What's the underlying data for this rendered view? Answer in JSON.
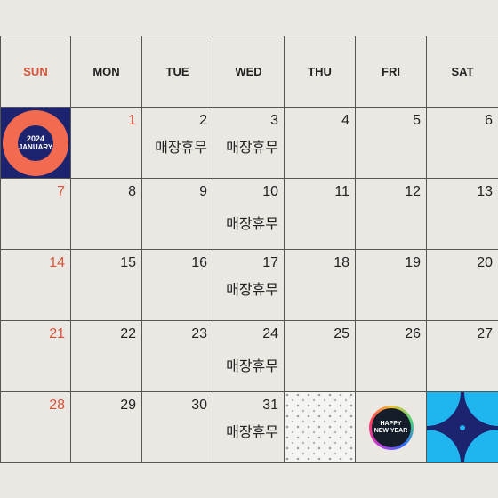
{
  "weekdays": [
    "SUN",
    "MON",
    "TUE",
    "WED",
    "THU",
    "FRI",
    "SAT"
  ],
  "days": {
    "d1": "1",
    "d2": "2",
    "d3": "3",
    "d4": "4",
    "d5": "5",
    "d6": "6",
    "d7": "7",
    "d8": "8",
    "d9": "9",
    "d10": "10",
    "d11": "11",
    "d12": "12",
    "d13": "13",
    "d14": "14",
    "d15": "15",
    "d16": "16",
    "d17": "17",
    "d18": "18",
    "d19": "19",
    "d20": "20",
    "d21": "21",
    "d22": "22",
    "d23": "23",
    "d24": "24",
    "d25": "25",
    "d26": "26",
    "d27": "27",
    "d28": "28",
    "d29": "29",
    "d30": "30",
    "d31": "31"
  },
  "store_closed_label": "매장휴무",
  "decor": {
    "january_badge": {
      "year": "2024",
      "month": "JANUARY"
    },
    "happy_new_year_badge": {
      "line1": "HAPPY",
      "line2": "NEW YEAR"
    }
  },
  "colors": {
    "sunday": "#d9533a",
    "background": "#ebe8e3",
    "navy": "#1c2470",
    "coral": "#f26a4f",
    "sky": "#1fb6f0"
  }
}
